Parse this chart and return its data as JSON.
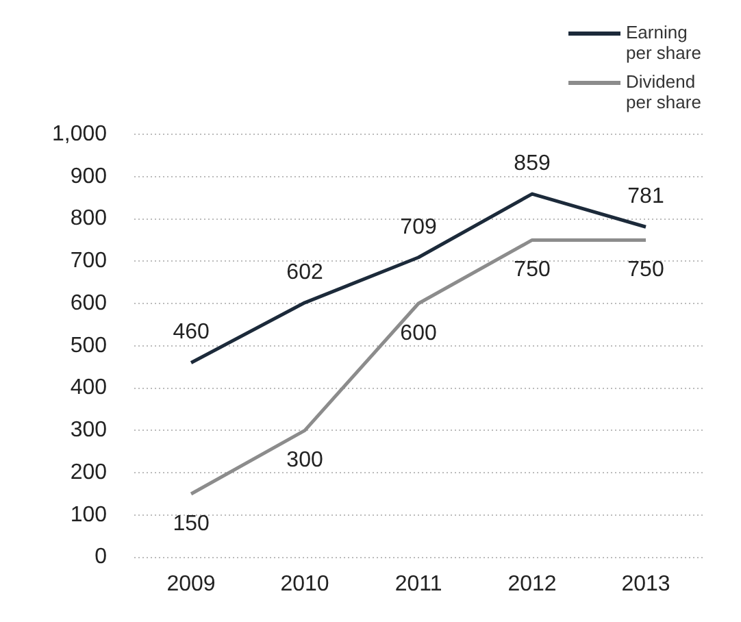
{
  "chart_data": {
    "type": "line",
    "categories": [
      "2009",
      "2010",
      "2011",
      "2012",
      "2013"
    ],
    "series": [
      {
        "name": "Earning per share",
        "color": "#1c2a3a",
        "values": [
          460,
          602,
          709,
          859,
          781
        ]
      },
      {
        "name": "Dividend per share",
        "color": "#8c8c8c",
        "values": [
          150,
          300,
          600,
          750,
          750
        ]
      }
    ],
    "ylim": [
      0,
      1000
    ],
    "yticks": [
      0,
      100,
      200,
      300,
      400,
      500,
      600,
      700,
      800,
      900,
      {
        "value": 1000,
        "label": "1,000"
      }
    ],
    "grid": "y",
    "legend": "top right",
    "marker": "none",
    "line_style": "solid",
    "data_labels": true
  }
}
